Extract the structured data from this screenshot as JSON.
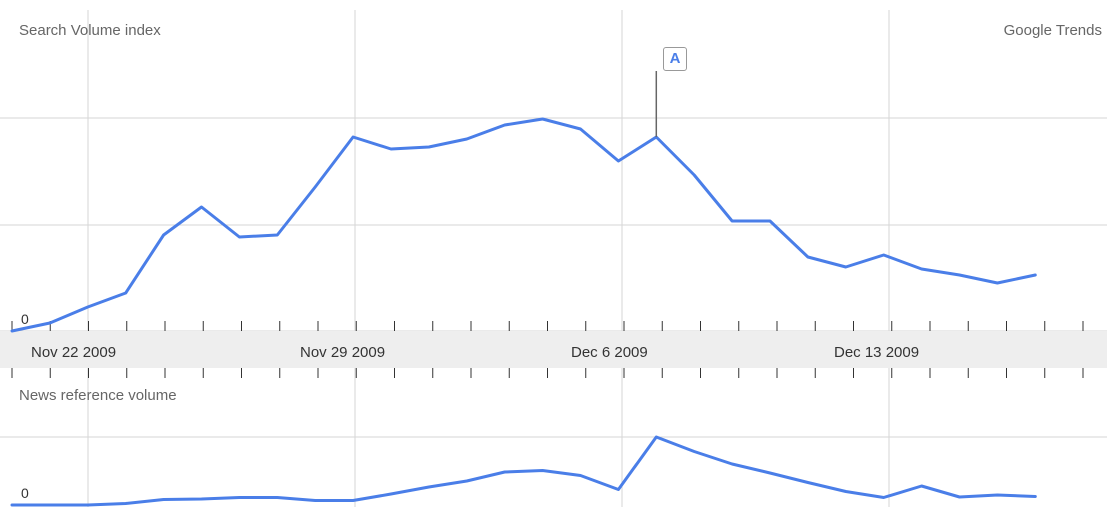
{
  "chart_data": [
    {
      "type": "line",
      "title": "Search Volume index",
      "source_label": "Google Trends",
      "zero_label": "0",
      "x_ticks": [
        "Nov 22 2009",
        "Nov 29 2009",
        "Dec 6 2009",
        "Dec 13 2009"
      ],
      "y_ticks": [
        "0"
      ],
      "grid": true,
      "series": [
        {
          "color": "#4a7ee8",
          "values": [
            0.0,
            0.04,
            0.12,
            0.19,
            0.48,
            0.62,
            0.47,
            0.48,
            0.72,
            0.97,
            0.91,
            0.92,
            0.96,
            1.03,
            1.06,
            1.01,
            0.85,
            0.97,
            0.78,
            0.55,
            0.55,
            0.37,
            0.32,
            0.38,
            0.31,
            0.28,
            0.24,
            0.28
          ]
        }
      ],
      "events": [
        {
          "label": "A",
          "index": 17
        }
      ]
    },
    {
      "type": "line",
      "title": "News reference volume",
      "zero_label": "0",
      "y_ticks": [
        "0"
      ],
      "grid": true,
      "series": [
        {
          "color": "#4a7ee8",
          "values": [
            0.0,
            0.0,
            0.0,
            0.03,
            0.11,
            0.12,
            0.15,
            0.15,
            0.09,
            0.09,
            0.22,
            0.36,
            0.48,
            0.66,
            0.69,
            0.59,
            0.31,
            1.36,
            1.07,
            0.82,
            0.64,
            0.45,
            0.27,
            0.15,
            0.38,
            0.16,
            0.2,
            0.17
          ]
        }
      ]
    }
  ]
}
